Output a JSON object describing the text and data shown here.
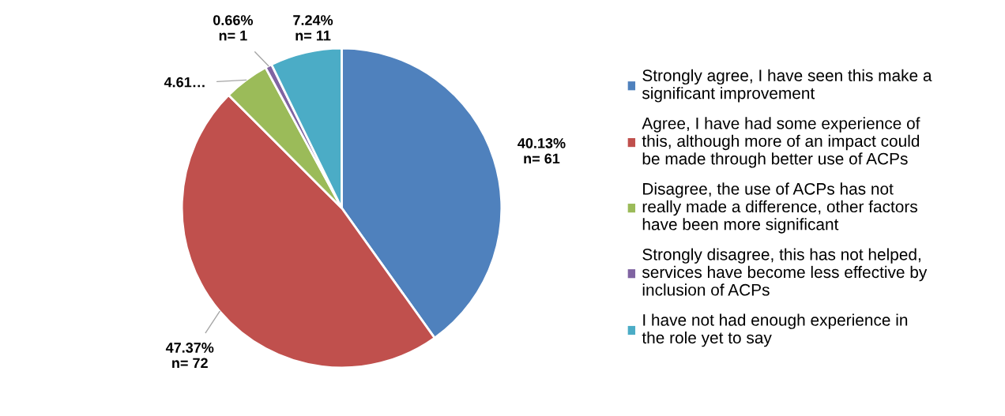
{
  "chart_data": {
    "type": "pie",
    "categories": [
      "Strongly agree, I have seen this make a\nsignificant improvement",
      "Agree, I have had some experience of\nthis, although more of an impact could\nbe made through better use of ACPs",
      "Disagree, the use of ACPs has not\nreally made a difference, other factors\nhave been more significant",
      "Strongly disagree, this has not helped,\nservices have become less effective by\ninclusion of ACPs",
      "I have not had enough experience in\nthe role yet to say"
    ],
    "values": [
      40.13,
      47.37,
      4.61,
      0.66,
      7.24
    ],
    "colors": [
      "#4f81bd",
      "#c0504d",
      "#9bbb59",
      "#8064a2",
      "#4bacc6"
    ],
    "value_labels": [
      "40.13%\nn= 61",
      "47.37%\nn= 72",
      "4.61…",
      "0.66%\nn= 1",
      "7.24%\nn= 11"
    ],
    "legend": "right"
  }
}
